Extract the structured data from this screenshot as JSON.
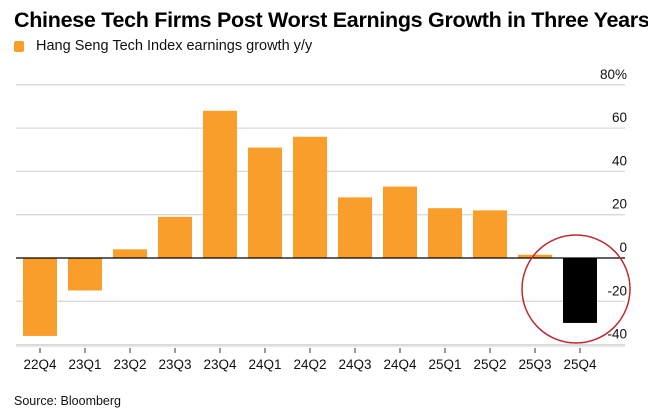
{
  "chart_data": {
    "type": "bar",
    "title": "Chinese Tech Firms Post Worst Earnings Growth in Three Years",
    "legend": [
      {
        "label": "Hang Seng Tech Index earnings growth y/y",
        "color": "#f99e2a"
      }
    ],
    "legend_placement": "top-left",
    "categories": [
      "22Q4",
      "23Q1",
      "23Q2",
      "23Q3",
      "23Q4",
      "24Q1",
      "24Q2",
      "24Q3",
      "24Q4",
      "25Q1",
      "25Q2",
      "25Q3",
      "25Q4"
    ],
    "series": [
      {
        "name": "Hang Seng Tech Index earnings growth y/y",
        "values": [
          -36,
          -15,
          4,
          19,
          68,
          51,
          56,
          28,
          33,
          23,
          22,
          1.5,
          -30
        ]
      }
    ],
    "highlight": {
      "category": "25Q4",
      "color": "#000000",
      "annotation": "red-circle",
      "annotation_color": "#c0282d"
    },
    "bar_color": "#f99e2a",
    "xlabel": "",
    "ylabel": "",
    "ylim": [
      -40,
      80
    ],
    "yticks": [
      80,
      60,
      40,
      20,
      0,
      -20,
      -40
    ],
    "ytick_labels": [
      "80%",
      "60",
      "40",
      "20",
      "0",
      "-20",
      "-40"
    ],
    "y_axis_side": "right",
    "grid": true,
    "source": "Source: Bloomberg"
  }
}
